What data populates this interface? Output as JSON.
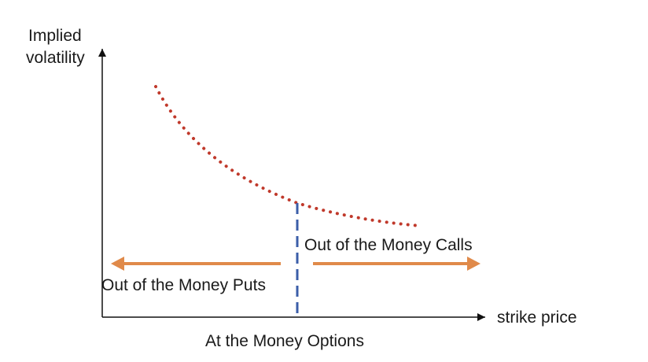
{
  "diagram": {
    "y_axis_label_line1": "Implied",
    "y_axis_label_line2": "volatility",
    "x_axis_label": "strike price",
    "atm_label": "At the Money Options",
    "otm_calls_label": "Out of the Money Calls",
    "otm_puts_label": "Out of the Money Puts"
  },
  "colors": {
    "axis": "#111111",
    "curve": "#c0392b",
    "divider": "#3b5ea8",
    "arrows": "#e08a4a"
  }
}
